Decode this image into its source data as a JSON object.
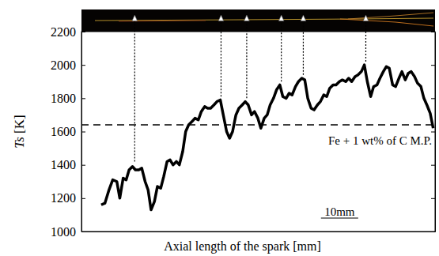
{
  "chart_data": {
    "type": "line",
    "x_label": "Axial length of the spark [mm]",
    "y_label": "Ts [K]",
    "color": "#000000",
    "grid": false,
    "tick_labels": "y",
    "xlim": [
      0,
      95
    ],
    "ylim": [
      1000,
      2200
    ],
    "yticks": [
      1000,
      1200,
      1400,
      1600,
      1800,
      2000,
      2200
    ],
    "x": [
      5.3,
      6.3,
      7.4,
      8.4,
      9.5,
      10.3,
      11.2,
      12.0,
      12.8,
      13.7,
      14.5,
      15.4,
      16.2,
      17.1,
      17.9,
      18.7,
      19.6,
      20.4,
      21.3,
      22.1,
      23.0,
      23.8,
      24.6,
      25.5,
      26.3,
      27.2,
      28.0,
      28.8,
      29.7,
      30.5,
      31.4,
      32.2,
      33.1,
      33.9,
      34.7,
      35.6,
      36.4,
      37.3,
      38.1,
      39.0,
      39.8,
      40.6,
      41.5,
      42.3,
      43.2,
      44.0,
      44.8,
      45.7,
      46.5,
      47.4,
      48.2,
      49.1,
      49.9,
      50.7,
      51.6,
      52.4,
      53.3,
      54.1,
      55.0,
      55.8,
      56.6,
      57.5,
      58.3,
      59.2,
      60.0,
      60.8,
      61.7,
      62.5,
      63.4,
      64.2,
      65.1,
      65.9,
      66.7,
      67.6,
      68.4,
      69.3,
      70.1,
      71.0,
      71.8,
      72.6,
      73.5,
      74.3,
      75.2,
      76.0,
      76.8,
      77.7,
      78.5,
      79.4,
      80.2,
      81.1,
      81.9,
      82.7,
      83.6,
      84.4,
      85.3,
      86.1,
      87.0,
      87.8,
      88.6,
      89.5,
      90.3,
      91.2,
      92.0,
      92.8,
      93.7,
      94.5
    ],
    "values": [
      1160,
      1170,
      1250,
      1310,
      1300,
      1200,
      1320,
      1310,
      1370,
      1390,
      1370,
      1370,
      1380,
      1300,
      1250,
      1130,
      1180,
      1270,
      1260,
      1330,
      1420,
      1430,
      1400,
      1420,
      1400,
      1480,
      1600,
      1640,
      1660,
      1680,
      1670,
      1720,
      1750,
      1740,
      1740,
      1760,
      1780,
      1790,
      1700,
      1600,
      1560,
      1600,
      1700,
      1740,
      1760,
      1780,
      1760,
      1700,
      1720,
      1680,
      1620,
      1680,
      1700,
      1760,
      1800,
      1850,
      1880,
      1810,
      1800,
      1830,
      1820,
      1870,
      1900,
      1920,
      1910,
      1800,
      1740,
      1730,
      1760,
      1780,
      1820,
      1810,
      1860,
      1880,
      1880,
      1900,
      1910,
      1900,
      1920,
      1900,
      1930,
      1940,
      1960,
      2000,
      1900,
      1810,
      1870,
      1880,
      1920,
      1960,
      1990,
      1980,
      1880,
      1870,
      1920,
      1960,
      1910,
      1950,
      1960,
      1930,
      1890,
      1870,
      1800,
      1760,
      1710,
      1620
    ],
    "reference_line": {
      "value": 1640,
      "label": "Fe + 1 wt% of C M.P."
    },
    "scale_bar": {
      "length": 10,
      "label": "10mm"
    },
    "arrows": [
      {
        "x": 14.3,
        "y": 1420
      },
      {
        "x": 37.5,
        "y": 1810
      },
      {
        "x": 44.4,
        "y": 1800
      },
      {
        "x": 53.7,
        "y": 1900
      },
      {
        "x": 59.6,
        "y": 1940
      },
      {
        "x": 76.4,
        "y": 2020
      }
    ]
  }
}
